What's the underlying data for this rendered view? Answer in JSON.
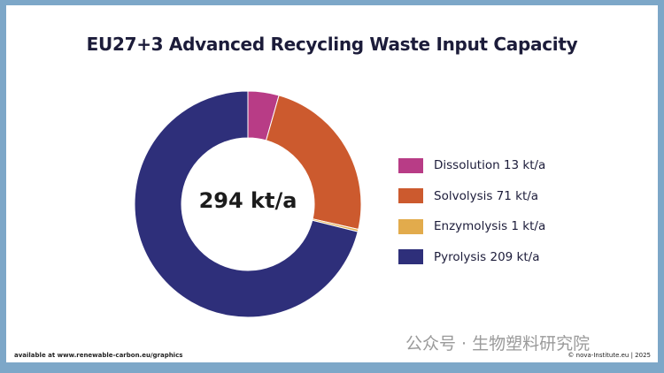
{
  "chart_data": {
    "type": "pie",
    "subtype": "donut",
    "title": "EU27+3 Advanced Recycling Waste Input Capacity",
    "center_label": "294 kt/a",
    "unit": "kt/a",
    "legend_position": "right",
    "slices": [
      {
        "name": "Dissolution",
        "value": 13,
        "label": "Dissolution 13 kt/a",
        "color": "#b83c86"
      },
      {
        "name": "Solvolysis",
        "value": 71,
        "label": "Solvolysis 71 kt/a",
        "color": "#cc5a2e"
      },
      {
        "name": "Enzymolysis",
        "value": 1,
        "label": "Enzymolysis 1 kt/a",
        "color": "#e2ab4c"
      },
      {
        "name": "Pyrolysis",
        "value": 209,
        "label": "Pyrolysis 209 kt/a",
        "color": "#2e2f7a"
      }
    ]
  },
  "footer": {
    "source": "available at www.renewable-carbon.eu/graphics",
    "credit": "© nova-Institute.eu | 2025",
    "watermark": "公众号 · 生物塑料研究院"
  },
  "colors": {
    "frame": "#7da7c8",
    "background": "#ffffff"
  }
}
